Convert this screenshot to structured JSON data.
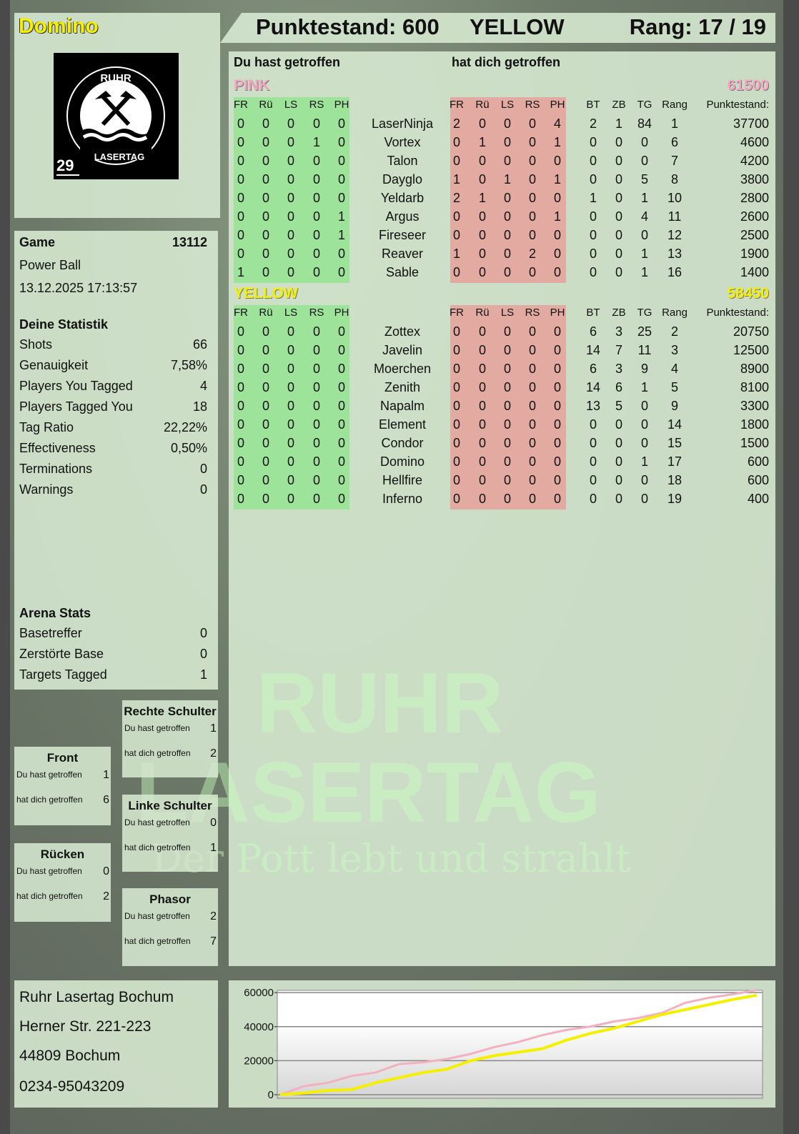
{
  "player": {
    "name": "Domino",
    "logo_text": "RUHR LASERTAG",
    "badge_number": "29"
  },
  "header": {
    "score": "Punktestand: 600",
    "team": "YELLOW",
    "rank": "Rang: 17 / 19"
  },
  "game": {
    "label": "Game",
    "id": "13112",
    "mode": "Power Ball",
    "datetime": "13.12.2025 17:13:57"
  },
  "stats": {
    "title": "Deine Statistik",
    "rows": [
      {
        "label": "Shots",
        "value": "66"
      },
      {
        "label": "Genauigkeit",
        "value": "7,58%"
      },
      {
        "label": "Players You Tagged",
        "value": "4"
      },
      {
        "label": "Players Tagged You",
        "value": "18"
      },
      {
        "label": "Tag Ratio",
        "value": "22,22%"
      },
      {
        "label": "Effectiveness",
        "value": "0,50%"
      },
      {
        "label": "Terminations",
        "value": "0"
      },
      {
        "label": "Warnings",
        "value": "0"
      }
    ]
  },
  "arena": {
    "title": "Arena Stats",
    "rows": [
      {
        "label": "Basetreffer",
        "value": "0"
      },
      {
        "label": "Zerstörte Base",
        "value": "0"
      },
      {
        "label": "Targets Tagged",
        "value": "1"
      }
    ]
  },
  "zones": [
    {
      "key": "rechte-schulter",
      "title": "Rechte Schulter",
      "hit_label": "Du hast getroffen",
      "hit": "1",
      "got_label": "hat dich getroffen",
      "got": "2"
    },
    {
      "key": "front",
      "title": "Front",
      "hit_label": "Du hast getroffen",
      "hit": "1",
      "got_label": "hat dich getroffen",
      "got": "6"
    },
    {
      "key": "linke-schulter",
      "title": "Linke Schulter",
      "hit_label": "Du hast getroffen",
      "hit": "0",
      "got_label": "hat dich getroffen",
      "got": "1"
    },
    {
      "key": "ruecken",
      "title": "Rücken",
      "hit_label": "Du hast getroffen",
      "hit": "0",
      "got_label": "hat dich getroffen",
      "got": "2"
    },
    {
      "key": "phasor",
      "title": "Phasor",
      "hit_label": "Du hast getroffen",
      "hit": "2",
      "got_label": "hat dich getroffen",
      "got": "7"
    }
  ],
  "address": {
    "line1": "Ruhr Lasertag Bochum",
    "line2": "Herner Str. 221-223",
    "line3": "44809 Bochum",
    "phone": "0234-95043209"
  },
  "table": {
    "you_hit_label": "Du hast getroffen",
    "hit_you_label": "hat dich getroffen",
    "headers": {
      "hit": [
        "FR",
        "Rü",
        "LS",
        "RS",
        "PH"
      ],
      "got": [
        "FR",
        "Rü",
        "LS",
        "RS",
        "PH"
      ],
      "extra": [
        "BT",
        "ZB",
        "TG",
        "Rang"
      ],
      "score": "Punktestand:"
    },
    "teams": [
      {
        "name": "PINK",
        "score": "61500",
        "color": "#f4a6c0",
        "players": [
          {
            "name": "LaserNinja",
            "hit": [
              0,
              0,
              0,
              0,
              0
            ],
            "got": [
              2,
              0,
              0,
              0,
              4
            ],
            "extra": [
              2,
              1,
              84,
              1
            ],
            "score": 37700
          },
          {
            "name": "Vortex",
            "hit": [
              0,
              0,
              0,
              1,
              0
            ],
            "got": [
              0,
              1,
              0,
              0,
              1
            ],
            "extra": [
              0,
              0,
              0,
              6
            ],
            "score": 4600
          },
          {
            "name": "Talon",
            "hit": [
              0,
              0,
              0,
              0,
              0
            ],
            "got": [
              0,
              0,
              0,
              0,
              0
            ],
            "extra": [
              0,
              0,
              0,
              7
            ],
            "score": 4200
          },
          {
            "name": "Dayglo",
            "hit": [
              0,
              0,
              0,
              0,
              0
            ],
            "got": [
              1,
              0,
              1,
              0,
              1
            ],
            "extra": [
              0,
              0,
              5,
              8
            ],
            "score": 3800
          },
          {
            "name": "Yeldarb",
            "hit": [
              0,
              0,
              0,
              0,
              0
            ],
            "got": [
              2,
              1,
              0,
              0,
              0
            ],
            "extra": [
              1,
              0,
              1,
              10
            ],
            "score": 2800
          },
          {
            "name": "Argus",
            "hit": [
              0,
              0,
              0,
              0,
              1
            ],
            "got": [
              0,
              0,
              0,
              0,
              1
            ],
            "extra": [
              0,
              0,
              4,
              11
            ],
            "score": 2600
          },
          {
            "name": "Fireseer",
            "hit": [
              0,
              0,
              0,
              0,
              1
            ],
            "got": [
              0,
              0,
              0,
              0,
              0
            ],
            "extra": [
              0,
              0,
              0,
              12
            ],
            "score": 2500
          },
          {
            "name": "Reaver",
            "hit": [
              0,
              0,
              0,
              0,
              0
            ],
            "got": [
              1,
              0,
              0,
              2,
              0
            ],
            "extra": [
              0,
              0,
              1,
              13
            ],
            "score": 1900
          },
          {
            "name": "Sable",
            "hit": [
              1,
              0,
              0,
              0,
              0
            ],
            "got": [
              0,
              0,
              0,
              0,
              0
            ],
            "extra": [
              0,
              0,
              1,
              16
            ],
            "score": 1400
          }
        ]
      },
      {
        "name": "YELLOW",
        "score": "58450",
        "color": "#f5f000",
        "players": [
          {
            "name": "Zottex",
            "hit": [
              0,
              0,
              0,
              0,
              0
            ],
            "got": [
              0,
              0,
              0,
              0,
              0
            ],
            "extra": [
              6,
              3,
              25,
              2
            ],
            "score": 20750
          },
          {
            "name": "Javelin",
            "hit": [
              0,
              0,
              0,
              0,
              0
            ],
            "got": [
              0,
              0,
              0,
              0,
              0
            ],
            "extra": [
              14,
              7,
              11,
              3
            ],
            "score": 12500
          },
          {
            "name": "Moerchen",
            "hit": [
              0,
              0,
              0,
              0,
              0
            ],
            "got": [
              0,
              0,
              0,
              0,
              0
            ],
            "extra": [
              6,
              3,
              9,
              4
            ],
            "score": 8900
          },
          {
            "name": "Zenith",
            "hit": [
              0,
              0,
              0,
              0,
              0
            ],
            "got": [
              0,
              0,
              0,
              0,
              0
            ],
            "extra": [
              14,
              6,
              1,
              5
            ],
            "score": 8100
          },
          {
            "name": "Napalm",
            "hit": [
              0,
              0,
              0,
              0,
              0
            ],
            "got": [
              0,
              0,
              0,
              0,
              0
            ],
            "extra": [
              13,
              5,
              0,
              9
            ],
            "score": 3300
          },
          {
            "name": "Element",
            "hit": [
              0,
              0,
              0,
              0,
              0
            ],
            "got": [
              0,
              0,
              0,
              0,
              0
            ],
            "extra": [
              0,
              0,
              0,
              14
            ],
            "score": 1800
          },
          {
            "name": "Condor",
            "hit": [
              0,
              0,
              0,
              0,
              0
            ],
            "got": [
              0,
              0,
              0,
              0,
              0
            ],
            "extra": [
              0,
              0,
              0,
              15
            ],
            "score": 1500
          },
          {
            "name": "Domino",
            "hit": [
              0,
              0,
              0,
              0,
              0
            ],
            "got": [
              0,
              0,
              0,
              0,
              0
            ],
            "extra": [
              0,
              0,
              1,
              17
            ],
            "score": 600
          },
          {
            "name": "Hellfire",
            "hit": [
              0,
              0,
              0,
              0,
              0
            ],
            "got": [
              0,
              0,
              0,
              0,
              0
            ],
            "extra": [
              0,
              0,
              0,
              18
            ],
            "score": 600
          },
          {
            "name": "Inferno",
            "hit": [
              0,
              0,
              0,
              0,
              0
            ],
            "got": [
              0,
              0,
              0,
              0,
              0
            ],
            "extra": [
              0,
              0,
              0,
              19
            ],
            "score": 400
          }
        ]
      }
    ]
  },
  "colors": {
    "hit_block": "#9ee39a",
    "got_block": "#e2aaa0",
    "player_name": "#f5f000"
  },
  "watermark": {
    "line1": "RUHR",
    "line2": "LASERTAG",
    "slogan": "Der Pott lebt und strahlt"
  },
  "chart_data": {
    "type": "line",
    "ylim": [
      0,
      63000
    ],
    "yticks": [
      "60000",
      "40000",
      "20000",
      "0"
    ],
    "ytick_values": [
      60000,
      40000,
      20000,
      0
    ],
    "grid": true,
    "x": [
      0,
      1,
      2,
      3,
      4,
      5,
      6,
      7,
      8,
      9,
      10,
      11,
      12,
      13,
      14,
      15,
      16,
      17,
      18,
      19,
      20
    ],
    "series": [
      {
        "color": "#f4b0c0",
        "values": [
          0,
          5000,
          7000,
          11000,
          13000,
          18000,
          19000,
          21000,
          24000,
          28000,
          31000,
          35000,
          38000,
          40000,
          43000,
          45000,
          48000,
          54000,
          57000,
          59000,
          61500
        ]
      },
      {
        "color": "#f5f000",
        "values": [
          0,
          1000,
          2500,
          3000,
          7000,
          10000,
          13000,
          15000,
          20000,
          23000,
          25000,
          27000,
          32000,
          36000,
          39000,
          43000,
          47000,
          50000,
          53000,
          56000,
          58450
        ]
      }
    ]
  }
}
